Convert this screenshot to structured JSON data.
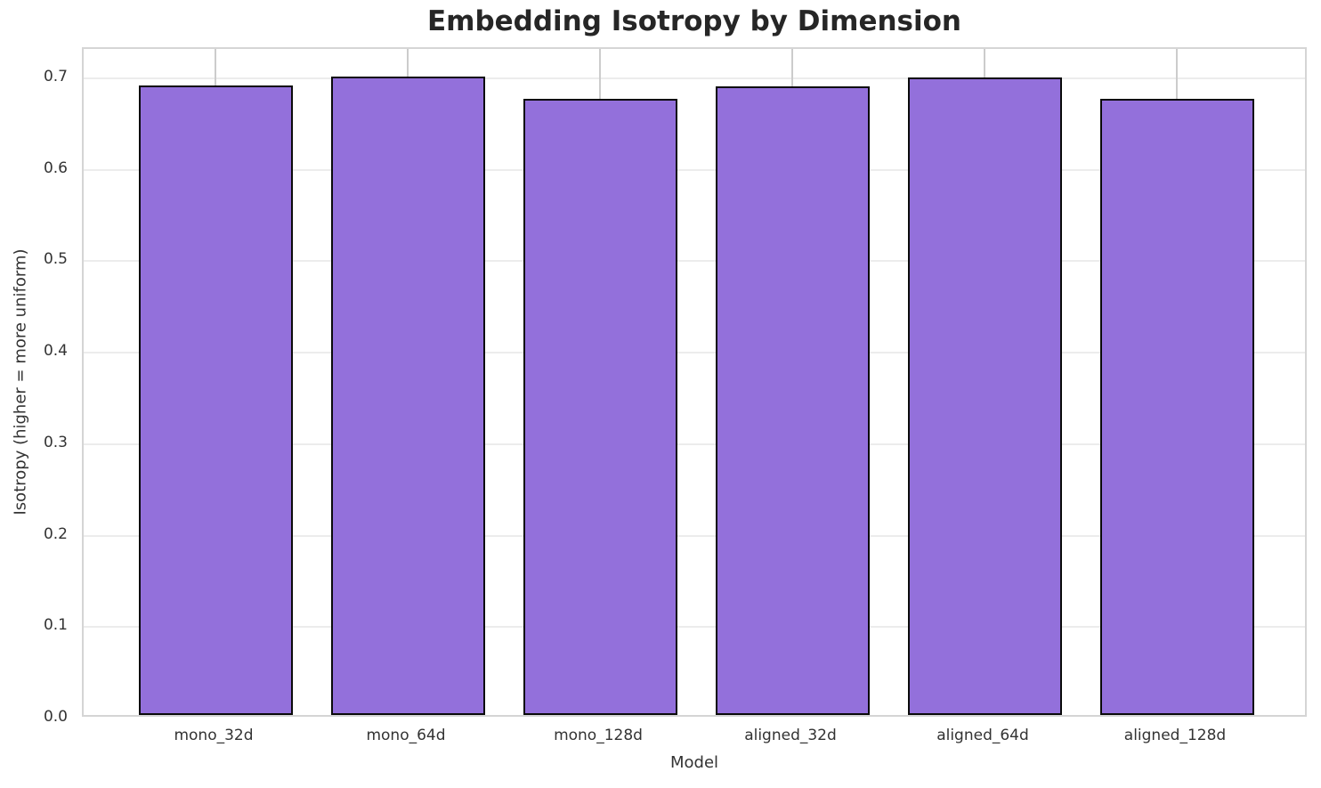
{
  "chart_data": {
    "type": "bar",
    "title": "Embedding Isotropy by Dimension",
    "xlabel": "Model",
    "ylabel": "Isotropy (higher = more uniform)",
    "categories": [
      "mono_32d",
      "mono_64d",
      "mono_128d",
      "aligned_32d",
      "aligned_64d",
      "aligned_128d"
    ],
    "values": [
      0.688,
      0.698,
      0.674,
      0.687,
      0.697,
      0.674
    ],
    "ylim": [
      0,
      0.732
    ],
    "yticks": [
      0.0,
      0.1,
      0.2,
      0.3,
      0.4,
      0.5,
      0.6,
      0.7
    ],
    "ytick_labels": [
      "0.0",
      "0.1",
      "0.2",
      "0.3",
      "0.4",
      "0.5",
      "0.6",
      "0.7"
    ],
    "grid": true,
    "legend_position": "none",
    "colors": {
      "bar_fill": "#9370DB",
      "bar_edge": "#0a0a0a",
      "grid_horizontal": "#ececec",
      "grid_vertical": "#cccccc",
      "spine": "#d5d5d5",
      "tick_text": "#333333",
      "title_text": "#262626",
      "background": "#ffffff"
    }
  }
}
